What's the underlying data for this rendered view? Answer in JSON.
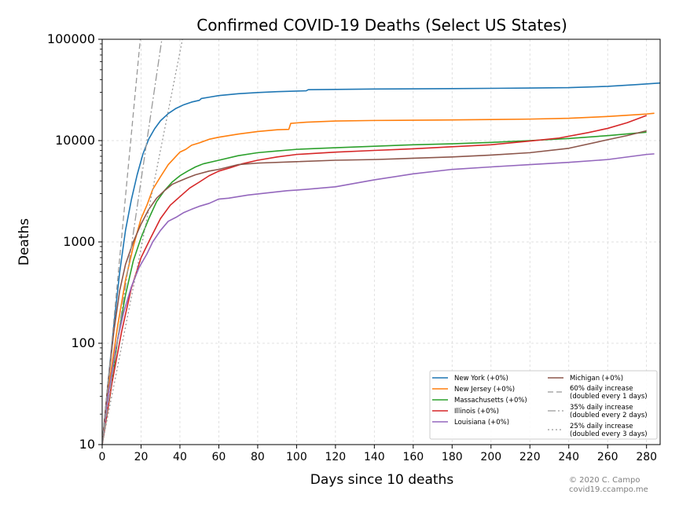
{
  "chart_data": {
    "type": "line",
    "title": "Confirmed COVID-19 Deaths (Select US States)",
    "xlabel": "Days since 10 deaths",
    "ylabel": "Deaths",
    "yscale": "log",
    "xlim": [
      0,
      287
    ],
    "ylim": [
      10,
      100000
    ],
    "x_ticks": [
      0,
      20,
      40,
      60,
      80,
      100,
      120,
      140,
      160,
      180,
      200,
      220,
      240,
      260,
      280
    ],
    "y_ticks": [
      10,
      100,
      1000,
      10000,
      100000
    ],
    "y_tick_labels": [
      "10",
      "100",
      "1000",
      "10000",
      "100000"
    ],
    "grid": true,
    "legend_position": "lower-right",
    "series": [
      {
        "name": "New York (+0%)",
        "color": "#1f77b4",
        "points": [
          [
            0,
            10
          ],
          [
            3,
            40
          ],
          [
            6,
            150
          ],
          [
            9,
            500
          ],
          [
            12,
            1300
          ],
          [
            15,
            2600
          ],
          [
            18,
            4600
          ],
          [
            21,
            7400
          ],
          [
            24,
            10400
          ],
          [
            27,
            13100
          ],
          [
            30,
            15700
          ],
          [
            34,
            18500
          ],
          [
            38,
            20800
          ],
          [
            42,
            22600
          ],
          [
            46,
            24000
          ],
          [
            50,
            25000
          ],
          [
            51,
            26000
          ],
          [
            55,
            26800
          ],
          [
            60,
            27800
          ],
          [
            70,
            29000
          ],
          [
            80,
            29800
          ],
          [
            90,
            30400
          ],
          [
            105,
            31000
          ],
          [
            106,
            31800
          ],
          [
            140,
            32300
          ],
          [
            180,
            32600
          ],
          [
            220,
            33000
          ],
          [
            240,
            33300
          ],
          [
            260,
            34300
          ],
          [
            275,
            35700
          ],
          [
            287,
            37000
          ]
        ]
      },
      {
        "name": "New Jersey (+0%)",
        "color": "#ff7f0e",
        "points": [
          [
            0,
            10
          ],
          [
            4,
            45
          ],
          [
            8,
            150
          ],
          [
            12,
            420
          ],
          [
            16,
            900
          ],
          [
            20,
            1700
          ],
          [
            23,
            2300
          ],
          [
            26,
            3300
          ],
          [
            30,
            4400
          ],
          [
            34,
            5800
          ],
          [
            38,
            7000
          ],
          [
            40,
            7700
          ],
          [
            43,
            8200
          ],
          [
            46,
            9000
          ],
          [
            50,
            9500
          ],
          [
            55,
            10300
          ],
          [
            60,
            10800
          ],
          [
            65,
            11200
          ],
          [
            70,
            11600
          ],
          [
            80,
            12300
          ],
          [
            90,
            12800
          ],
          [
            96,
            12900
          ],
          [
            97,
            14800
          ],
          [
            105,
            15200
          ],
          [
            120,
            15600
          ],
          [
            140,
            15800
          ],
          [
            180,
            16000
          ],
          [
            220,
            16300
          ],
          [
            240,
            16600
          ],
          [
            260,
            17300
          ],
          [
            280,
            18300
          ],
          [
            284,
            18600
          ]
        ]
      },
      {
        "name": "Massachusetts (+0%)",
        "color": "#2ca02c",
        "points": [
          [
            0,
            10
          ],
          [
            4,
            30
          ],
          [
            8,
            110
          ],
          [
            12,
            300
          ],
          [
            16,
            650
          ],
          [
            20,
            1100
          ],
          [
            24,
            1700
          ],
          [
            28,
            2500
          ],
          [
            32,
            3200
          ],
          [
            36,
            3900
          ],
          [
            40,
            4500
          ],
          [
            44,
            5000
          ],
          [
            48,
            5500
          ],
          [
            52,
            5900
          ],
          [
            60,
            6400
          ],
          [
            70,
            7100
          ],
          [
            80,
            7600
          ],
          [
            90,
            7900
          ],
          [
            100,
            8200
          ],
          [
            120,
            8500
          ],
          [
            140,
            8800
          ],
          [
            160,
            9100
          ],
          [
            180,
            9300
          ],
          [
            200,
            9600
          ],
          [
            220,
            10000
          ],
          [
            240,
            10500
          ],
          [
            260,
            11200
          ],
          [
            280,
            12100
          ]
        ]
      },
      {
        "name": "Illinois (+0%)",
        "color": "#d62728",
        "points": [
          [
            0,
            10
          ],
          [
            5,
            40
          ],
          [
            10,
            130
          ],
          [
            15,
            350
          ],
          [
            20,
            700
          ],
          [
            25,
            1100
          ],
          [
            30,
            1700
          ],
          [
            35,
            2300
          ],
          [
            40,
            2800
          ],
          [
            45,
            3400
          ],
          [
            50,
            3900
          ],
          [
            55,
            4500
          ],
          [
            60,
            5000
          ],
          [
            66,
            5400
          ],
          [
            72,
            5900
          ],
          [
            80,
            6400
          ],
          [
            90,
            6900
          ],
          [
            100,
            7300
          ],
          [
            120,
            7700
          ],
          [
            140,
            8000
          ],
          [
            160,
            8300
          ],
          [
            180,
            8700
          ],
          [
            200,
            9100
          ],
          [
            220,
            9900
          ],
          [
            235,
            10600
          ],
          [
            250,
            12000
          ],
          [
            260,
            13200
          ],
          [
            270,
            15000
          ],
          [
            280,
            17700
          ]
        ]
      },
      {
        "name": "Louisiana (+0%)",
        "color": "#9467bd",
        "points": [
          [
            0,
            10
          ],
          [
            3,
            30
          ],
          [
            7,
            90
          ],
          [
            11,
            200
          ],
          [
            15,
            360
          ],
          [
            19,
            560
          ],
          [
            23,
            760
          ],
          [
            26,
            1000
          ],
          [
            30,
            1300
          ],
          [
            34,
            1600
          ],
          [
            38,
            1750
          ],
          [
            42,
            1950
          ],
          [
            46,
            2100
          ],
          [
            50,
            2250
          ],
          [
            55,
            2400
          ],
          [
            60,
            2650
          ],
          [
            65,
            2700
          ],
          [
            75,
            2900
          ],
          [
            85,
            3050
          ],
          [
            95,
            3200
          ],
          [
            105,
            3300
          ],
          [
            120,
            3500
          ],
          [
            140,
            4100
          ],
          [
            160,
            4700
          ],
          [
            180,
            5200
          ],
          [
            200,
            5500
          ],
          [
            220,
            5800
          ],
          [
            240,
            6100
          ],
          [
            260,
            6500
          ],
          [
            280,
            7300
          ],
          [
            284,
            7400
          ]
        ]
      },
      {
        "name": "Michigan (+0%)",
        "color": "#8c564b",
        "points": [
          [
            0,
            10
          ],
          [
            3,
            40
          ],
          [
            6,
            130
          ],
          [
            9,
            330
          ],
          [
            12,
            600
          ],
          [
            16,
            1000
          ],
          [
            20,
            1500
          ],
          [
            24,
            2100
          ],
          [
            28,
            2700
          ],
          [
            32,
            3200
          ],
          [
            36,
            3700
          ],
          [
            40,
            4000
          ],
          [
            44,
            4300
          ],
          [
            48,
            4600
          ],
          [
            55,
            5000
          ],
          [
            60,
            5200
          ],
          [
            70,
            5800
          ],
          [
            80,
            6000
          ],
          [
            100,
            6200
          ],
          [
            120,
            6400
          ],
          [
            140,
            6500
          ],
          [
            160,
            6700
          ],
          [
            180,
            6900
          ],
          [
            200,
            7200
          ],
          [
            220,
            7600
          ],
          [
            240,
            8400
          ],
          [
            260,
            10200
          ],
          [
            270,
            11200
          ],
          [
            280,
            12500
          ]
        ]
      },
      {
        "name": "60% daily increase\n(doubled every 1 days)",
        "color": "#999999",
        "dash": "7,4",
        "points": [
          [
            0,
            10
          ],
          [
            19.6,
            100000
          ]
        ]
      },
      {
        "name": "35% daily increase\n(doubled every 2 days)",
        "color": "#999999",
        "dash": "10,3,2,3",
        "points": [
          [
            0,
            10
          ],
          [
            30.7,
            100000
          ]
        ]
      },
      {
        "name": "25% daily increase\n(doubled every 3 days)",
        "color": "#999999",
        "dash": "2,3",
        "points": [
          [
            0,
            10
          ],
          [
            41.3,
            100000
          ]
        ]
      }
    ]
  },
  "credit": {
    "line1": "© 2020 C. Campo",
    "line2": "covid19.ccampo.me"
  }
}
